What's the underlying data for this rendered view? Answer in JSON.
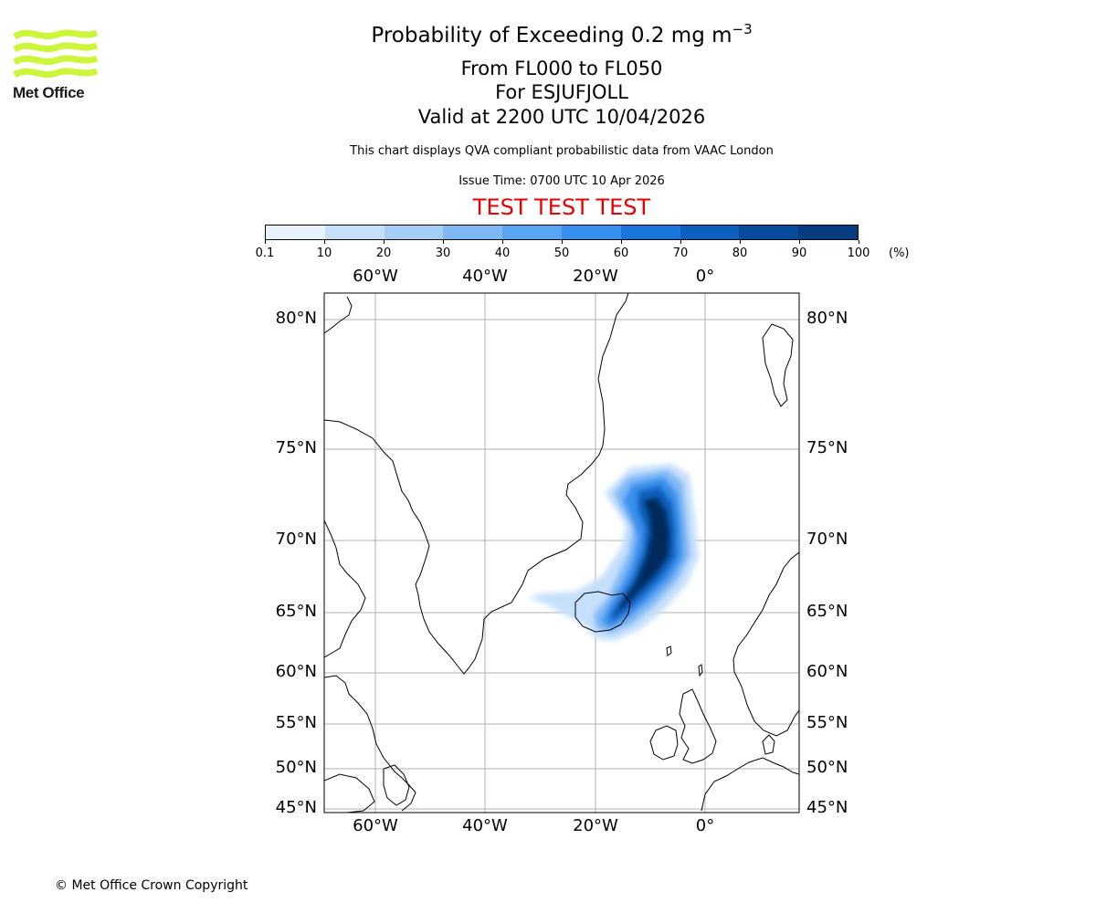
{
  "logo": {
    "text": "Met Office",
    "color": "#ccf53c"
  },
  "title": {
    "main": "Probability of Exceeding 0.2 mg m",
    "superscript": "−3",
    "levels": "From FL000 to FL050",
    "location": "For ESJUFJOLL",
    "valid": "Valid at 2200 UTC 10/04/2026"
  },
  "description": "This chart displays QVA compliant probabilistic data from VAAC London",
  "issue_time": "Issue Time: 0700 UTC 10 Apr 2026",
  "test_banner": "TEST TEST TEST",
  "colorbar": {
    "labels": [
      "0.1",
      "10",
      "20",
      "30",
      "40",
      "50",
      "60",
      "70",
      "80",
      "90",
      "100"
    ],
    "unit": "(%)",
    "colors": [
      "#e8f2fd",
      "#c6e0fb",
      "#a4cdf8",
      "#7fb9f5",
      "#5aa5f2",
      "#3890ee",
      "#1a75dd",
      "#0d5fbd",
      "#074c9c",
      "#053d80",
      "#032a5c"
    ]
  },
  "map": {
    "lon_labels": [
      "60°W",
      "40°W",
      "20°W",
      "0°"
    ],
    "lat_labels": [
      "80°N",
      "75°N",
      "70°N",
      "65°N",
      "60°N",
      "55°N",
      "50°N",
      "45°N"
    ],
    "grid_color": "#b0b0b0",
    "plume_peak_probability_pct": 100
  },
  "copyright": "© Met Office Crown Copyright"
}
